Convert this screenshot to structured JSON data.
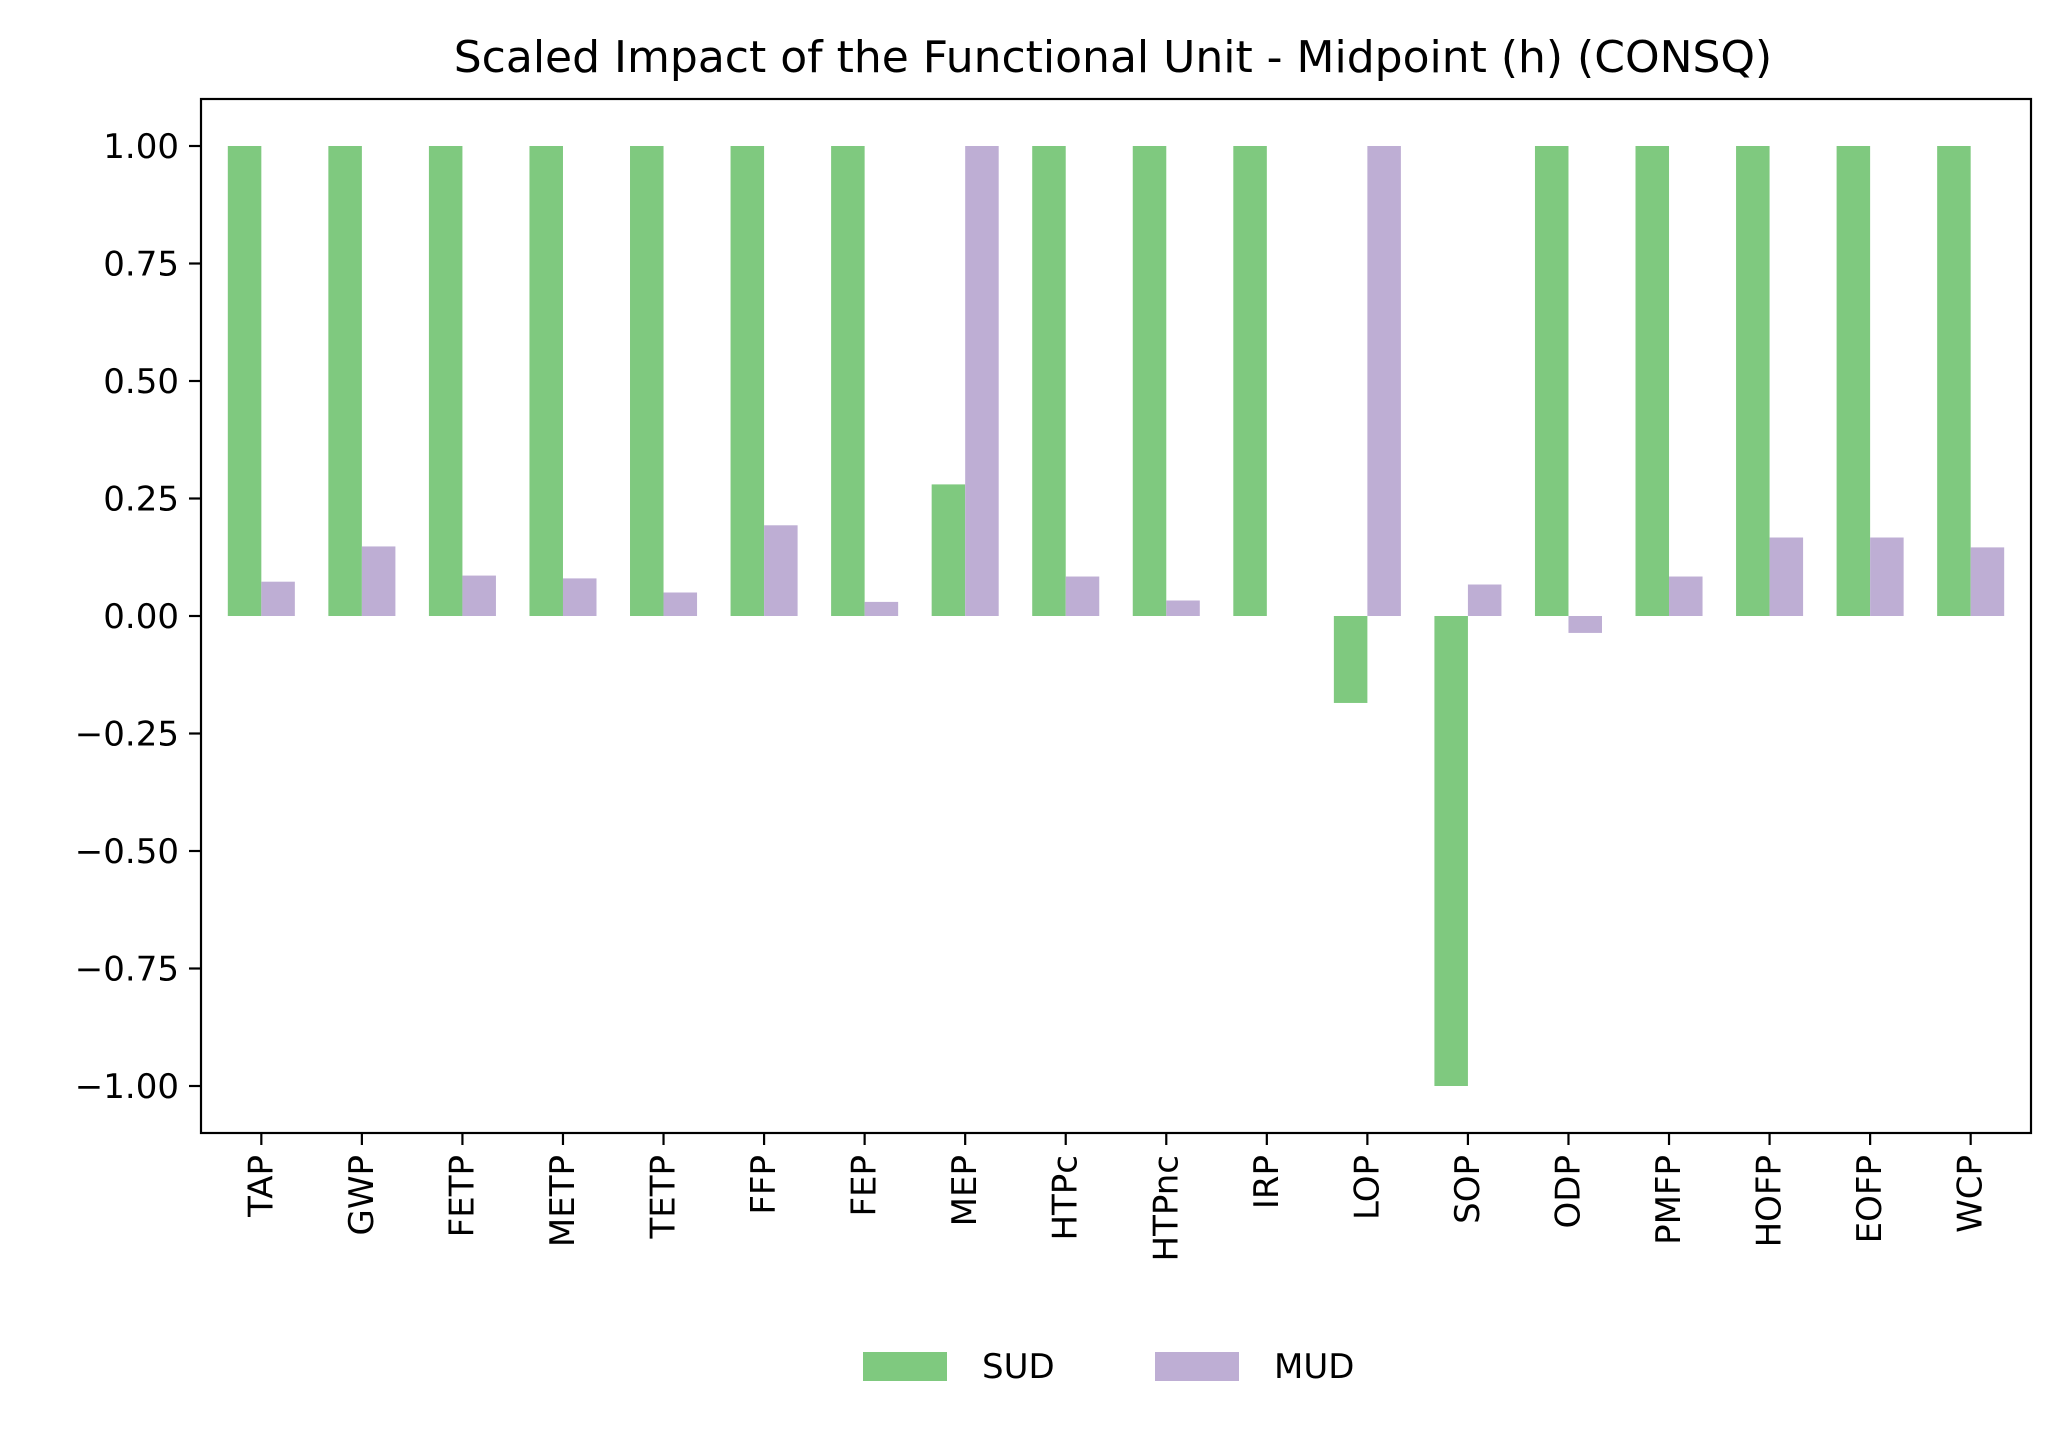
{
  "chart_data": {
    "type": "bar",
    "title": "Scaled Impact of the Functional Unit - Midpoint (h) (CONSQ)",
    "xlabel": "",
    "ylabel": "",
    "ylim": [
      -1.1,
      1.1
    ],
    "yticks": [
      1.0,
      0.75,
      0.5,
      0.25,
      0.0,
      -0.25,
      -0.5,
      -0.75,
      -1.0
    ],
    "ytick_labels": [
      "1.00",
      "0.75",
      "0.50",
      "0.25",
      "0.00",
      "−0.25",
      "−0.50",
      "−0.75",
      "−1.00"
    ],
    "categories": [
      "TAP",
      "GWP",
      "FETP",
      "METP",
      "TETP",
      "FFP",
      "FEP",
      "MEP",
      "HTPc",
      "HTPnc",
      "IRP",
      "LOP",
      "SOP",
      "ODP",
      "PMFP",
      "HOFP",
      "EOFP",
      "WCP"
    ],
    "series": [
      {
        "name": "SUD",
        "color": "#7fc97f",
        "values": [
          1.0,
          1.0,
          1.0,
          1.0,
          1.0,
          1.0,
          1.0,
          0.28,
          1.0,
          1.0,
          1.0,
          -0.185,
          -1.0,
          1.0,
          1.0,
          1.0,
          1.0,
          1.0
        ]
      },
      {
        "name": "MUD",
        "color": "#beaed4",
        "values": [
          0.073,
          0.148,
          0.086,
          0.08,
          0.05,
          0.193,
          0.03,
          1.0,
          0.084,
          0.033,
          0.0,
          1.0,
          0.067,
          -0.036,
          0.084,
          0.167,
          0.167,
          0.146
        ]
      }
    ],
    "grid": false,
    "legend_position": "bottom-center"
  }
}
